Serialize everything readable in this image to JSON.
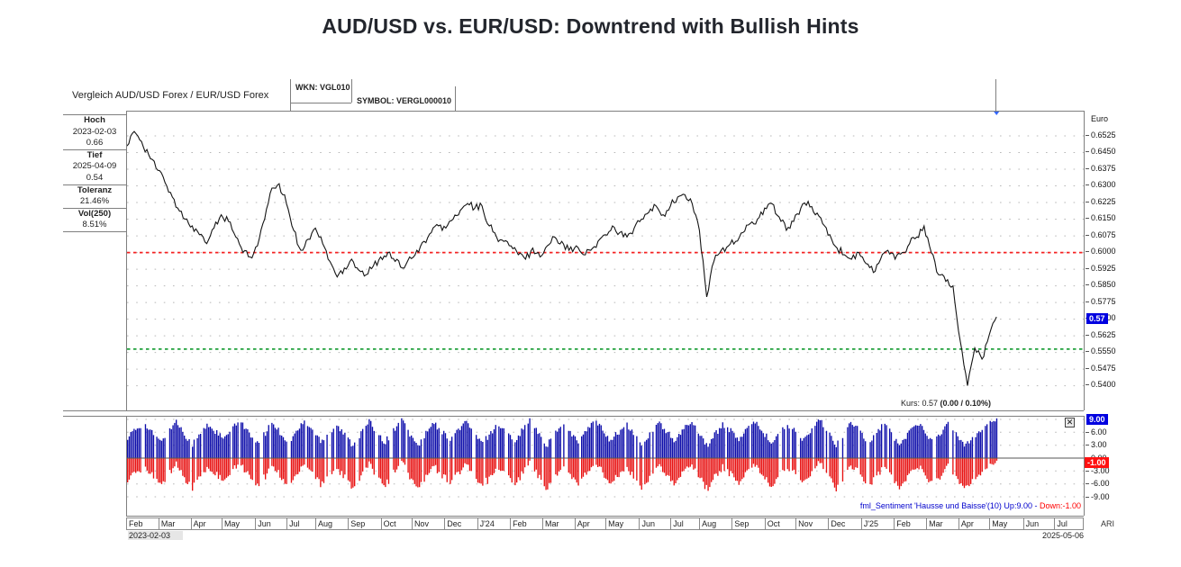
{
  "page_title": "AUD/USD vs. EUR/USD: Downtrend with Bullish Hints",
  "header": {
    "instrument": "Vergleich AUD/USD Forex / EUR/USD Forex",
    "wkn": "WKN: VGL010",
    "symbol": "SYMBOL: VERGL000010"
  },
  "stats_panel": {
    "sections": [
      {
        "label": "Hoch",
        "values": [
          "2023-02-03",
          "0.66"
        ]
      },
      {
        "label": "Tief",
        "values": [
          "2025-04-09",
          "0.54"
        ]
      },
      {
        "label": "Toleranz",
        "values": [
          "21.46%"
        ]
      },
      {
        "label": "Vol(250)",
        "values": [
          "8.51%"
        ]
      }
    ]
  },
  "price_panel": {
    "axis_title": "Euro",
    "ticks": [
      "0.6525",
      "0.6450",
      "0.6375",
      "0.6300",
      "0.6225",
      "0.6150",
      "0.6075",
      "0.6000",
      "0.5925",
      "0.5850",
      "0.5775",
      "0.5700",
      "0.5625",
      "0.5550",
      "0.5475",
      "0.5400"
    ],
    "current_price_tag": "0.57",
    "kurs_text": "Kurs: 0.57 ",
    "kurs_change": "(0.00 / 0.10%)"
  },
  "sentiment_panel": {
    "ticks": [
      "6.00",
      "3.00",
      "0.00",
      "-3.00",
      "-6.00",
      "-9.00"
    ],
    "up_tag": "9.00",
    "down_tag": "-1.00",
    "label_blue": "fml_Sentiment 'Hausse und Baisse'(10) Up:9.00 - ",
    "label_red": "Down:-1.00",
    "close_icon": "✕"
  },
  "timeline": {
    "months": [
      "Feb",
      "Mar",
      "Apr",
      "May",
      "Jun",
      "Jul",
      "Aug",
      "Sep",
      "Oct",
      "Nov",
      "Dec",
      "J'24",
      "Feb",
      "Mar",
      "Apr",
      "May",
      "Jun",
      "Jul",
      "Aug",
      "Sep",
      "Oct",
      "Nov",
      "Dec",
      "J'25",
      "Feb",
      "Mar",
      "Apr",
      "May",
      "Jun",
      "Jul"
    ],
    "start_date": "2023-02-03",
    "end_date": "2025-05-06",
    "watermark": "ARI"
  },
  "colors": {
    "grid_dots": "#b8b8b8",
    "price_line": "#141414",
    "resistance_red": "#f42222",
    "support_green": "#21a13c",
    "bars_up": "#0d0daa",
    "bars_down": "#e81212",
    "tag_blue_bg": "#0000e0",
    "tag_red_bg": "#ff1111",
    "fml_blue": "#0000cc",
    "fml_red": "#ff0000"
  },
  "chart_data": [
    {
      "type": "line",
      "title": "Vergleich AUD/USD Forex / EUR/USD Forex",
      "ylabel": "Euro",
      "ylim": [
        0.5325,
        0.6635
      ],
      "y_ticks": [
        0.6525,
        0.645,
        0.6375,
        0.63,
        0.6225,
        0.615,
        0.6075,
        0.6,
        0.5925,
        0.585,
        0.5775,
        0.57,
        0.5625,
        0.555,
        0.5475,
        0.54
      ],
      "x_months": [
        "Feb",
        "Mar",
        "Apr",
        "May",
        "Jun",
        "Jul",
        "Aug",
        "Sep",
        "Oct",
        "Nov",
        "Dec",
        "J'24",
        "Feb",
        "Mar",
        "Apr",
        "May",
        "Jun",
        "Jul",
        "Aug",
        "Sep",
        "Oct",
        "Nov",
        "Dec",
        "J'25",
        "Feb",
        "Mar",
        "Apr",
        "May",
        "Jun",
        "Jul"
      ],
      "x_start": "2023-02-03",
      "x_end": "2025-05-06",
      "data_end_fraction": 0.908,
      "high": {
        "date": "2023-02-03",
        "value": 0.66
      },
      "low": {
        "date": "2025-04-09",
        "value": 0.54
      },
      "last_price": 0.57,
      "ref_lines": [
        {
          "value": 0.6,
          "style": "dashed",
          "color": "red"
        },
        {
          "value": 0.5565,
          "style": "dashed",
          "color": "green"
        }
      ],
      "weekly_values": [
        0.648,
        0.6545,
        0.65,
        0.644,
        0.638,
        0.634,
        0.627,
        0.62,
        0.615,
        0.612,
        0.608,
        0.604,
        0.611,
        0.617,
        0.614,
        0.607,
        0.6,
        0.598,
        0.603,
        0.615,
        0.629,
        0.631,
        0.622,
        0.61,
        0.601,
        0.606,
        0.611,
        0.604,
        0.596,
        0.589,
        0.593,
        0.597,
        0.592,
        0.59,
        0.594,
        0.598,
        0.6,
        0.596,
        0.593,
        0.598,
        0.601,
        0.605,
        0.609,
        0.612,
        0.611,
        0.615,
        0.619,
        0.622,
        0.62,
        0.621,
        0.612,
        0.607,
        0.605,
        0.603,
        0.599,
        0.597,
        0.602,
        0.598,
        0.603,
        0.607,
        0.605,
        0.601,
        0.603,
        0.599,
        0.601,
        0.605,
        0.608,
        0.612,
        0.609,
        0.607,
        0.611,
        0.615,
        0.618,
        0.621,
        0.617,
        0.621,
        0.625,
        0.626,
        0.622,
        0.61,
        0.58,
        0.596,
        0.601,
        0.603,
        0.605,
        0.609,
        0.613,
        0.615,
        0.62,
        0.622,
        0.616,
        0.61,
        0.614,
        0.62,
        0.623,
        0.617,
        0.613,
        0.608,
        0.602,
        0.599,
        0.597,
        0.6,
        0.595,
        0.591,
        0.597,
        0.601,
        0.597,
        0.6,
        0.604,
        0.607,
        0.612,
        0.6,
        0.59,
        0.587,
        0.585,
        0.56,
        0.54,
        0.557,
        0.552,
        0.563,
        0.571
      ]
    },
    {
      "type": "bar",
      "name": "fml_Sentiment 'Hausse und Baisse'(10)",
      "up": 9.0,
      "down": -1.0,
      "ylim": [
        -9.75,
        9.75
      ],
      "y_ticks": [
        9,
        6,
        3,
        0,
        -3,
        -6,
        -9
      ],
      "data_end_fraction": 0.908,
      "down_rule": "down = up - 10",
      "up_envelope_keyframes": [
        5.0,
        8.0,
        3.8,
        8.6,
        3.2,
        7.8,
        4.3,
        8.9,
        2.9,
        8.2,
        3.6,
        8.7,
        4.1,
        7.6,
        3.0,
        8.4,
        3.7,
        9.0,
        2.7,
        8.1,
        4.4,
        8.6,
        3.3,
        7.9,
        4.0,
        8.8,
        2.8,
        8.3,
        3.5,
        8.9,
        4.2,
        7.7,
        3.1,
        8.5,
        3.8,
        8.8,
        2.9,
        8.0,
        4.3,
        8.7,
        3.4,
        7.8,
        4.1,
        8.9,
        3.0,
        8.4,
        3.6,
        8.2,
        2.8,
        8.6,
        3.9,
        7.9,
        3.2,
        6.5,
        9.0
      ]
    }
  ]
}
